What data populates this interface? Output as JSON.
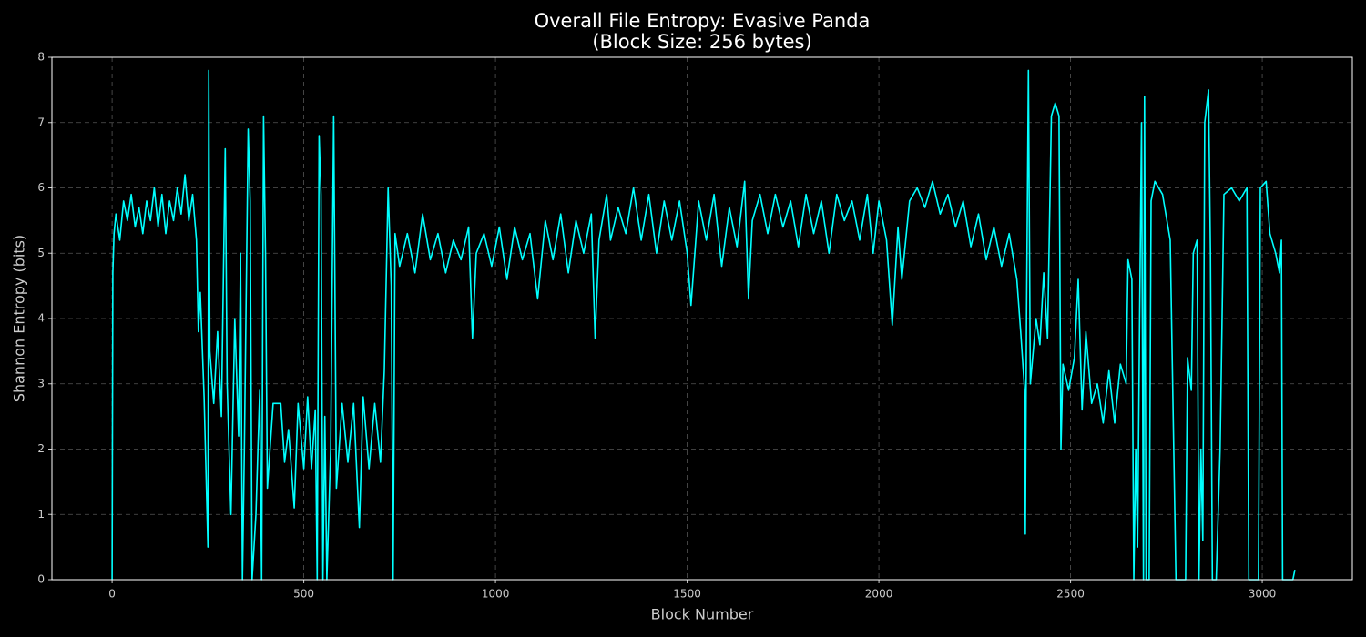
{
  "chart_data": {
    "type": "line",
    "title": "Overall File Entropy: Evasive Panda",
    "subtitle": "(Block Size: 256 bytes)",
    "xlabel": "Block Number",
    "ylabel": "Shannon Entropy (bits)",
    "color": "#00ffff",
    "grid": true,
    "xlim": [
      -157,
      3235
    ],
    "ylim": [
      0,
      8
    ],
    "xticks": [
      0,
      500,
      1000,
      1500,
      2000,
      2500,
      3000
    ],
    "yticks": [
      0,
      1,
      2,
      3,
      4,
      5,
      6,
      7,
      8
    ],
    "x": [
      0,
      2,
      5,
      10,
      20,
      30,
      40,
      50,
      60,
      70,
      80,
      90,
      100,
      110,
      120,
      130,
      140,
      150,
      160,
      170,
      180,
      190,
      200,
      210,
      220,
      225,
      230,
      240,
      250,
      252,
      255,
      265,
      275,
      285,
      295,
      300,
      310,
      320,
      330,
      335,
      340,
      345,
      355,
      360,
      365,
      375,
      385,
      390,
      395,
      400,
      405,
      420,
      440,
      450,
      460,
      475,
      485,
      500,
      510,
      520,
      530,
      535,
      540,
      545,
      550,
      555,
      560,
      570,
      578,
      585,
      600,
      615,
      630,
      645,
      655,
      670,
      685,
      700,
      710,
      720,
      728,
      733,
      738,
      750,
      770,
      790,
      810,
      830,
      850,
      870,
      890,
      910,
      930,
      940,
      950,
      970,
      990,
      1010,
      1030,
      1050,
      1070,
      1090,
      1110,
      1130,
      1150,
      1170,
      1190,
      1210,
      1230,
      1250,
      1260,
      1270,
      1290,
      1300,
      1320,
      1340,
      1360,
      1380,
      1400,
      1420,
      1440,
      1460,
      1480,
      1500,
      1510,
      1530,
      1550,
      1570,
      1590,
      1610,
      1630,
      1650,
      1660,
      1670,
      1690,
      1710,
      1730,
      1750,
      1770,
      1790,
      1810,
      1830,
      1850,
      1870,
      1890,
      1910,
      1930,
      1950,
      1970,
      1985,
      2000,
      2020,
      2035,
      2050,
      2060,
      2080,
      2100,
      2120,
      2140,
      2160,
      2180,
      2200,
      2220,
      2240,
      2260,
      2280,
      2300,
      2320,
      2340,
      2360,
      2370,
      2380,
      2382,
      2385,
      2390,
      2395,
      2410,
      2420,
      2430,
      2440,
      2450,
      2460,
      2470,
      2475,
      2480,
      2495,
      2510,
      2520,
      2530,
      2540,
      2555,
      2570,
      2585,
      2600,
      2615,
      2630,
      2645,
      2650,
      2660,
      2665,
      2670,
      2675,
      2680,
      2685,
      2690,
      2693,
      2697,
      2705,
      2710,
      2720,
      2740,
      2760,
      2775,
      2800,
      2805,
      2815,
      2820,
      2830,
      2835,
      2840,
      2845,
      2850,
      2860,
      2865,
      2870,
      2880,
      2890,
      2900,
      2920,
      2940,
      2960,
      2965,
      2990,
      2995,
      3010,
      3020,
      3035,
      3045,
      3050,
      3053,
      3080,
      3085
    ],
    "values": [
      0,
      4.7,
      5.3,
      5.6,
      5.2,
      5.8,
      5.5,
      5.9,
      5.4,
      5.7,
      5.3,
      5.8,
      5.5,
      6.0,
      5.4,
      5.9,
      5.3,
      5.8,
      5.5,
      6.0,
      5.6,
      6.2,
      5.5,
      5.9,
      5.2,
      3.8,
      4.4,
      2.8,
      0.5,
      7.8,
      3.5,
      2.7,
      3.8,
      2.5,
      6.6,
      3.0,
      1.0,
      4.0,
      2.2,
      5.0,
      0,
      2.0,
      6.9,
      5.8,
      0,
      1.0,
      2.9,
      0,
      7.1,
      5.0,
      1.4,
      2.7,
      2.7,
      1.8,
      2.3,
      1.1,
      2.7,
      1.7,
      2.8,
      1.7,
      2.6,
      0,
      6.8,
      5.9,
      0,
      2.5,
      0,
      2.0,
      7.1,
      1.4,
      2.7,
      1.8,
      2.7,
      0.8,
      2.8,
      1.7,
      2.7,
      1.8,
      3.2,
      6.0,
      4.5,
      0,
      5.3,
      4.8,
      5.3,
      4.7,
      5.6,
      4.9,
      5.3,
      4.7,
      5.2,
      4.9,
      5.4,
      3.7,
      5.0,
      5.3,
      4.8,
      5.4,
      4.6,
      5.4,
      4.9,
      5.3,
      4.3,
      5.5,
      4.9,
      5.6,
      4.7,
      5.5,
      5.0,
      5.6,
      3.7,
      5.2,
      5.9,
      5.2,
      5.7,
      5.3,
      6.0,
      5.2,
      5.9,
      5.0,
      5.8,
      5.2,
      5.8,
      5.0,
      4.2,
      5.8,
      5.2,
      5.9,
      4.8,
      5.7,
      5.1,
      6.1,
      4.3,
      5.5,
      5.9,
      5.3,
      5.9,
      5.4,
      5.8,
      5.1,
      5.9,
      5.3,
      5.8,
      5.0,
      5.9,
      5.5,
      5.8,
      5.2,
      5.9,
      5.0,
      5.8,
      5.2,
      3.9,
      5.4,
      4.6,
      5.8,
      6.0,
      5.7,
      6.1,
      5.6,
      5.9,
      5.4,
      5.8,
      5.1,
      5.6,
      4.9,
      5.4,
      4.8,
      5.3,
      4.6,
      3.8,
      2.9,
      0.7,
      4.0,
      7.8,
      3.0,
      4.0,
      3.6,
      4.7,
      3.7,
      7.1,
      7.3,
      7.1,
      2.0,
      3.3,
      2.9,
      3.4,
      4.6,
      2.6,
      3.8,
      2.7,
      3.0,
      2.4,
      3.2,
      2.4,
      3.3,
      3.0,
      4.9,
      4.6,
      0,
      2.0,
      0.5,
      4.0,
      7.0,
      0,
      7.4,
      0,
      0,
      5.8,
      6.1,
      5.9,
      5.2,
      0,
      0,
      3.4,
      2.9,
      5.0,
      5.2,
      0,
      2.0,
      0.6,
      7.0,
      7.5,
      5.0,
      0,
      0,
      2.0,
      5.9,
      6.0,
      5.8,
      6.0,
      0,
      0,
      6.0,
      6.1,
      5.3,
      5.0,
      4.7,
      5.2,
      0,
      0,
      0.15
    ]
  }
}
